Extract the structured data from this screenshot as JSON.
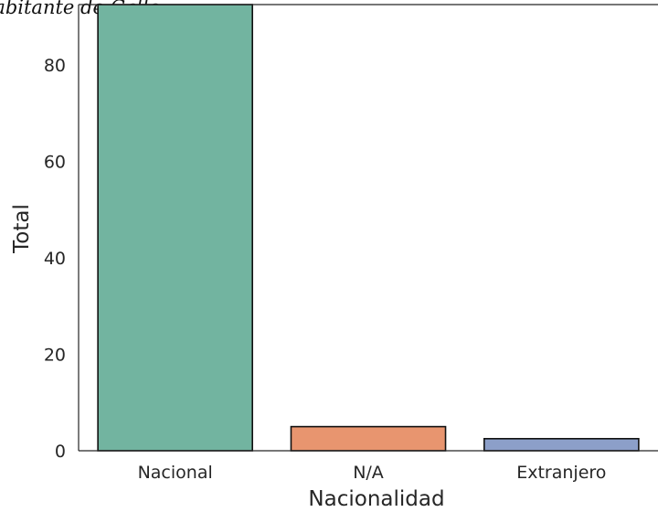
{
  "chart_data": {
    "type": "bar",
    "title": "Habitante de Calle",
    "xlabel": "Nacionalidad",
    "ylabel": "Total",
    "categories": [
      "Nacional",
      "N/A",
      "Extranjero"
    ],
    "values": [
      92.5,
      5,
      2.5
    ],
    "colors": [
      "#72b4a0",
      "#e8956f",
      "#8c9fc9"
    ],
    "ylim": [
      0,
      92.5
    ],
    "yticks": [
      0,
      20,
      40,
      60,
      80
    ],
    "grid": false,
    "legend": "none"
  }
}
